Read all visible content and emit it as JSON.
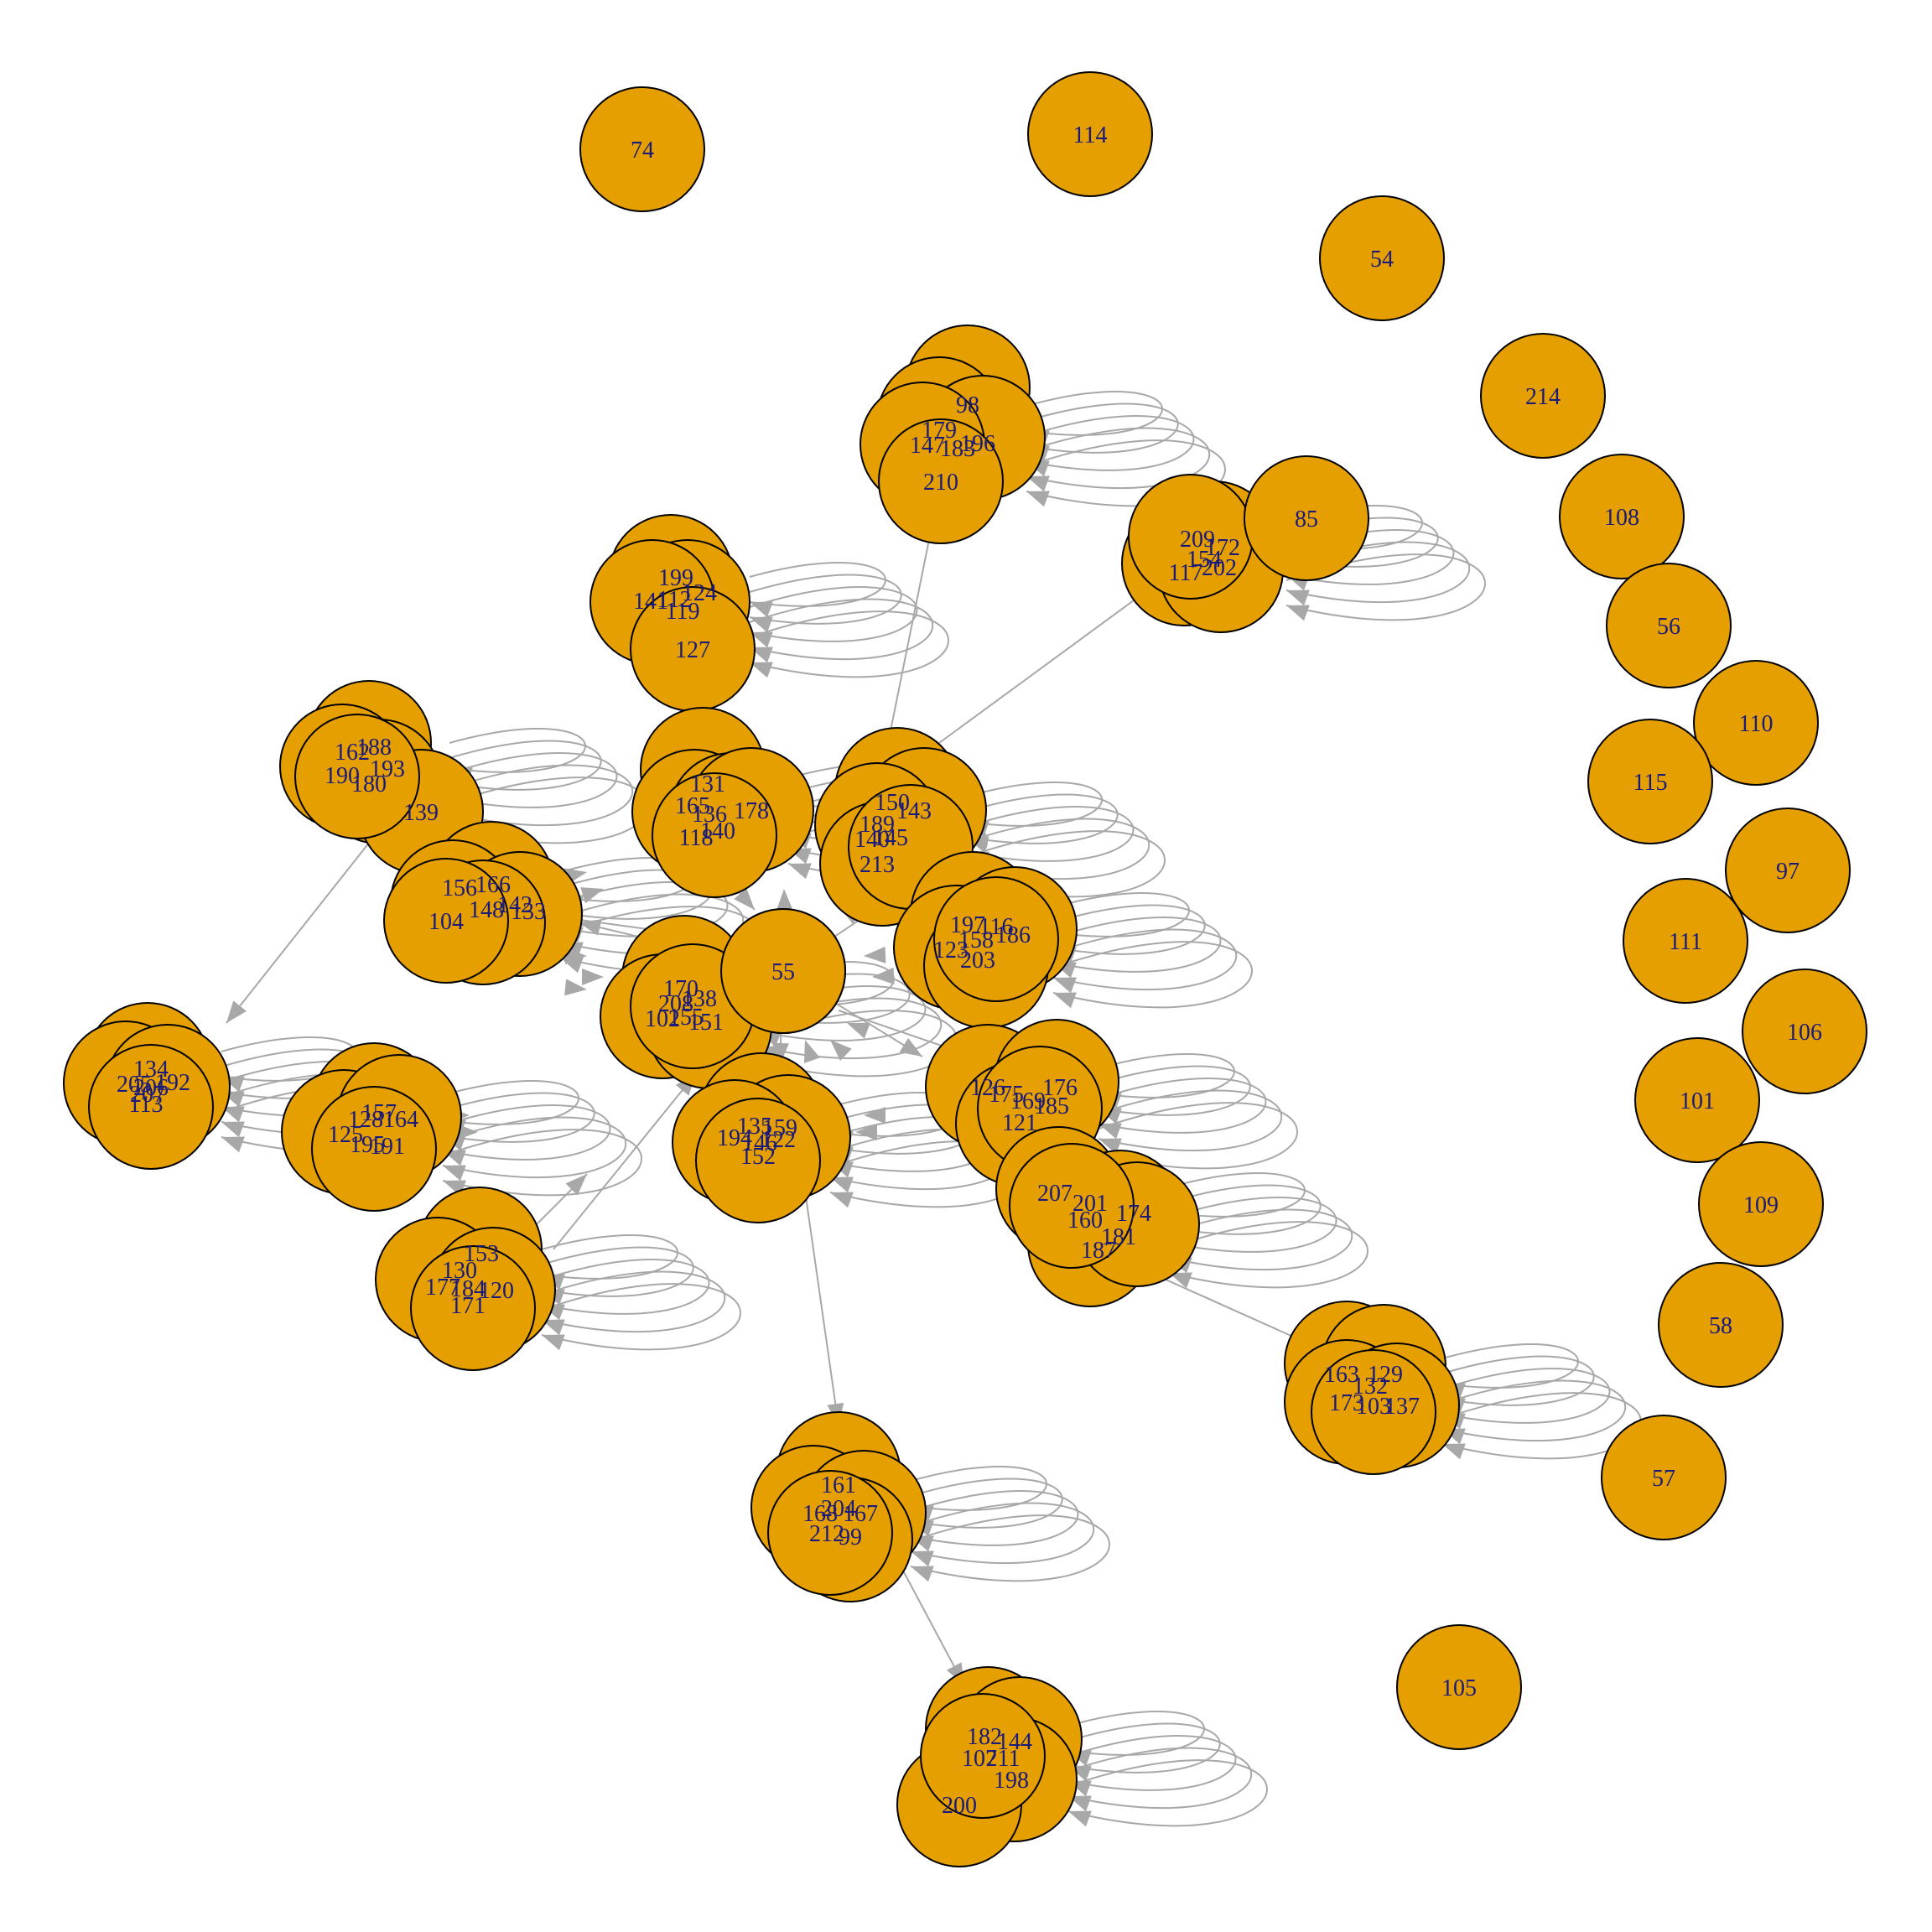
{
  "style": {
    "node_fill": "#E69F00",
    "node_stroke": "#000000",
    "label_color": "#1a1a7a",
    "edge_color": "#a8a8a8"
  },
  "nodes": [
    {
      "id": "74"
    },
    {
      "id": "114"
    },
    {
      "id": "54"
    },
    {
      "id": "214"
    },
    {
      "id": "108"
    },
    {
      "id": "56"
    },
    {
      "id": "110"
    },
    {
      "id": "115"
    },
    {
      "id": "97"
    },
    {
      "id": "111"
    },
    {
      "id": "106"
    },
    {
      "id": "101"
    },
    {
      "id": "109"
    },
    {
      "id": "58"
    },
    {
      "id": "57"
    },
    {
      "id": "105"
    },
    {
      "id": "98"
    },
    {
      "id": "179"
    },
    {
      "id": "147"
    },
    {
      "id": "183"
    },
    {
      "id": "196"
    },
    {
      "id": "210"
    },
    {
      "id": "85"
    },
    {
      "id": "209"
    },
    {
      "id": "172"
    },
    {
      "id": "154"
    },
    {
      "id": "202"
    },
    {
      "id": "117"
    },
    {
      "id": "199"
    },
    {
      "id": "124"
    },
    {
      "id": "141"
    },
    {
      "id": "112"
    },
    {
      "id": "119"
    },
    {
      "id": "127"
    },
    {
      "id": "188"
    },
    {
      "id": "162"
    },
    {
      "id": "193"
    },
    {
      "id": "190"
    },
    {
      "id": "180"
    },
    {
      "id": "139"
    },
    {
      "id": "131"
    },
    {
      "id": "165"
    },
    {
      "id": "136"
    },
    {
      "id": "178"
    },
    {
      "id": "140"
    },
    {
      "id": "118"
    },
    {
      "id": "150"
    },
    {
      "id": "143"
    },
    {
      "id": "189"
    },
    {
      "id": "140b"
    },
    {
      "id": "145"
    },
    {
      "id": "213"
    },
    {
      "id": "166"
    },
    {
      "id": "156"
    },
    {
      "id": "142"
    },
    {
      "id": "148"
    },
    {
      "id": "133"
    },
    {
      "id": "104"
    },
    {
      "id": "197"
    },
    {
      "id": "116"
    },
    {
      "id": "158"
    },
    {
      "id": "123"
    },
    {
      "id": "186"
    },
    {
      "id": "203"
    },
    {
      "id": "55"
    },
    {
      "id": "170"
    },
    {
      "id": "138"
    },
    {
      "id": "208"
    },
    {
      "id": "102"
    },
    {
      "id": "155"
    },
    {
      "id": "151"
    },
    {
      "id": "134"
    },
    {
      "id": "205"
    },
    {
      "id": "192"
    },
    {
      "id": "206"
    },
    {
      "id": "113"
    },
    {
      "id": "207b"
    },
    {
      "id": "157"
    },
    {
      "id": "128"
    },
    {
      "id": "164"
    },
    {
      "id": "125"
    },
    {
      "id": "195"
    },
    {
      "id": "191"
    },
    {
      "id": "135"
    },
    {
      "id": "159"
    },
    {
      "id": "194"
    },
    {
      "id": "146"
    },
    {
      "id": "122"
    },
    {
      "id": "152"
    },
    {
      "id": "126"
    },
    {
      "id": "176"
    },
    {
      "id": "175"
    },
    {
      "id": "169"
    },
    {
      "id": "185"
    },
    {
      "id": "121"
    },
    {
      "id": "207"
    },
    {
      "id": "201"
    },
    {
      "id": "174"
    },
    {
      "id": "160"
    },
    {
      "id": "181"
    },
    {
      "id": "187"
    },
    {
      "id": "153"
    },
    {
      "id": "130"
    },
    {
      "id": "177"
    },
    {
      "id": "184"
    },
    {
      "id": "120"
    },
    {
      "id": "171"
    },
    {
      "id": "163"
    },
    {
      "id": "129"
    },
    {
      "id": "132"
    },
    {
      "id": "173"
    },
    {
      "id": "103"
    },
    {
      "id": "137"
    },
    {
      "id": "161"
    },
    {
      "id": "204"
    },
    {
      "id": "168"
    },
    {
      "id": "167"
    },
    {
      "id": "212"
    },
    {
      "id": "99"
    },
    {
      "id": "182"
    },
    {
      "id": "144"
    },
    {
      "id": "107"
    },
    {
      "id": "211"
    },
    {
      "id": "198"
    },
    {
      "id": "200"
    }
  ]
}
